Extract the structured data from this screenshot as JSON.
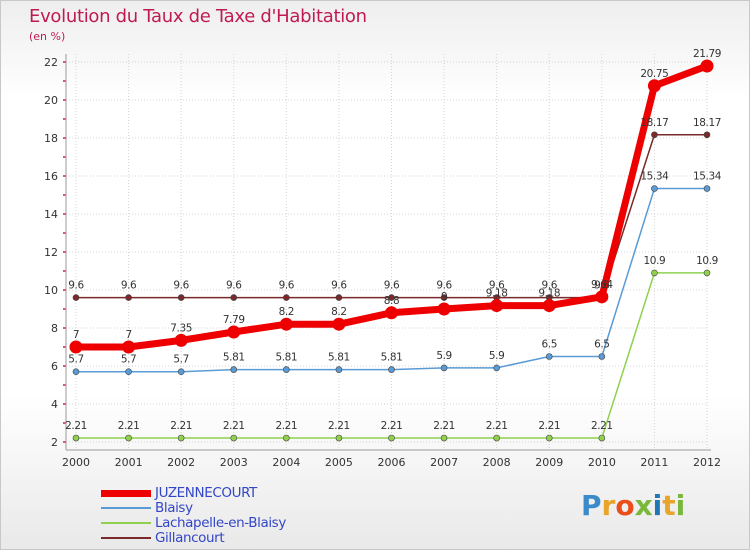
{
  "header": {
    "title": "Evolution du Taux de Taxe d'Habitation",
    "subtitle": "(en %)"
  },
  "brand": {
    "text": "Proxiti",
    "colors": [
      "#3b8ac9",
      "#e9a52b",
      "#e94e1b",
      "#7ab83c",
      "#1f78b4",
      "#e9a52b",
      "#7ab83c"
    ]
  },
  "chart_data": {
    "type": "line",
    "x": [
      "2000",
      "2001",
      "2002",
      "2003",
      "2004",
      "2005",
      "2006",
      "2007",
      "2008",
      "2009",
      "2010",
      "2011",
      "2012"
    ],
    "ylim": [
      2,
      22
    ],
    "yticks": [
      2,
      4,
      6,
      8,
      10,
      12,
      14,
      16,
      18,
      20,
      22
    ],
    "grid": true,
    "legend": "bottom-left",
    "series": [
      {
        "name": "JUZENNECOURT",
        "color": "#ee0000",
        "values": [
          7,
          7,
          7.35,
          7.79,
          8.2,
          8.2,
          8.8,
          9,
          9.18,
          9.18,
          9.64,
          20.75,
          21.79
        ],
        "labels": [
          "7",
          "7",
          "7.35",
          "7.79",
          "8.2",
          "8.2",
          "8.8",
          "9",
          "9.18",
          "9.18",
          "9.64",
          "20.75",
          "21.79"
        ]
      },
      {
        "name": "Blaisy",
        "color": "#5a9bd5",
        "values": [
          5.7,
          5.7,
          5.7,
          5.81,
          5.81,
          5.81,
          5.81,
          5.9,
          5.9,
          6.5,
          6.5,
          15.34,
          15.34
        ],
        "labels": [
          "5.7",
          "5.7",
          "5.7",
          "5.81",
          "5.81",
          "5.81",
          "5.81",
          "5.9",
          "5.9",
          "6.5",
          "6.5",
          "15.34",
          "15.34"
        ]
      },
      {
        "name": "Lachapelle-en-Blaisy",
        "color": "#8fd14f",
        "values": [
          2.21,
          2.21,
          2.21,
          2.21,
          2.21,
          2.21,
          2.21,
          2.21,
          2.21,
          2.21,
          2.21,
          10.9,
          10.9
        ],
        "labels": [
          "2.21",
          "2.21",
          "2.21",
          "2.21",
          "2.21",
          "2.21",
          "2.21",
          "2.21",
          "2.21",
          "2.21",
          "2.21",
          "10.9",
          "10.9"
        ]
      },
      {
        "name": "Gillancourt",
        "color": "#7a2a2a",
        "values": [
          9.6,
          9.6,
          9.6,
          9.6,
          9.6,
          9.6,
          9.6,
          9.6,
          9.6,
          9.6,
          9.6,
          18.17,
          18.17
        ],
        "labels": [
          "9.6",
          "9.6",
          "9.6",
          "9.6",
          "9.6",
          "9.6",
          "9.6",
          "9.6",
          "9.6",
          "9.6",
          "9.6",
          "18.17",
          "18.17"
        ]
      }
    ]
  }
}
